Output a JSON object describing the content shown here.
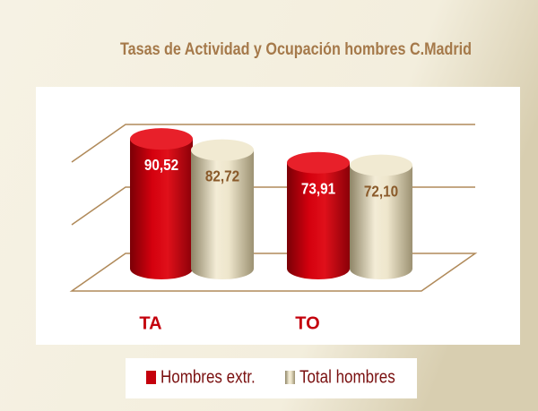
{
  "chart_data": {
    "type": "bar3d",
    "title": "Tasas de Actividad y Ocupación hombres C.Madrid",
    "categories": [
      "TA",
      "TO"
    ],
    "series": [
      {
        "name": "Hombres extr.",
        "color": "#c4000c",
        "values": [
          90.52,
          73.91
        ],
        "value_labels": [
          "90,52",
          "73,91"
        ]
      },
      {
        "name": "Total hombres",
        "color": "#d9cfae",
        "values": [
          82.72,
          72.1
        ],
        "value_labels": [
          "82,72",
          "72,10"
        ]
      }
    ],
    "ylim": [
      0,
      100
    ],
    "grid": true
  }
}
